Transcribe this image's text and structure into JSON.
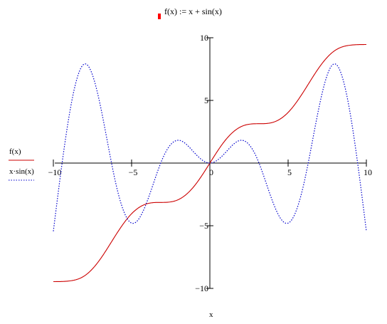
{
  "definition": {
    "text": "f(x) := x + sin(x)",
    "marker_color": "#ff0000"
  },
  "chart_data": {
    "type": "line",
    "title": "",
    "xlabel": "x",
    "ylabel": "",
    "xlim": [
      -10,
      10
    ],
    "ylim": [
      -10,
      10
    ],
    "x_ticks": [
      -10,
      -5,
      0,
      5,
      10
    ],
    "y_ticks": [
      -10,
      -5,
      5,
      10
    ],
    "x_tick_labels": [
      "-10",
      "-5",
      "0",
      "5",
      "10"
    ],
    "y_tick_labels": [
      "-10",
      "-5",
      "5",
      "10"
    ],
    "grid": false,
    "legend_position": "left",
    "x": [
      -10,
      -9,
      -8,
      -7,
      -6,
      -5,
      -4,
      -3,
      -2,
      -1,
      0,
      1,
      2,
      3,
      4,
      5,
      6,
      7,
      8,
      9,
      10
    ],
    "series": [
      {
        "name": "f(x)",
        "color": "#cc0000",
        "style": "solid",
        "values": [
          -9.46,
          -9.41,
          -8.99,
          -7.66,
          -5.72,
          -4.04,
          -3.24,
          -3.14,
          -2.91,
          -1.84,
          0,
          1.84,
          2.91,
          3.14,
          3.24,
          4.04,
          5.72,
          7.66,
          8.99,
          9.41,
          9.46
        ]
      },
      {
        "name": "x·sin(x)",
        "color": "#0000cc",
        "style": "dotted",
        "values": [
          -5.44,
          3.71,
          7.91,
          4.6,
          -1.68,
          -4.79,
          -3.03,
          0.42,
          1.82,
          0.84,
          0,
          0.84,
          1.82,
          0.42,
          -3.03,
          -4.79,
          -1.68,
          4.6,
          7.91,
          3.71,
          -5.44
        ]
      }
    ]
  },
  "legend": {
    "items": [
      {
        "label": "f(x)",
        "color": "#cc0000",
        "style": "solid"
      },
      {
        "label": "x·sin(x)",
        "color": "#0000cc",
        "style": "dotted"
      }
    ]
  }
}
